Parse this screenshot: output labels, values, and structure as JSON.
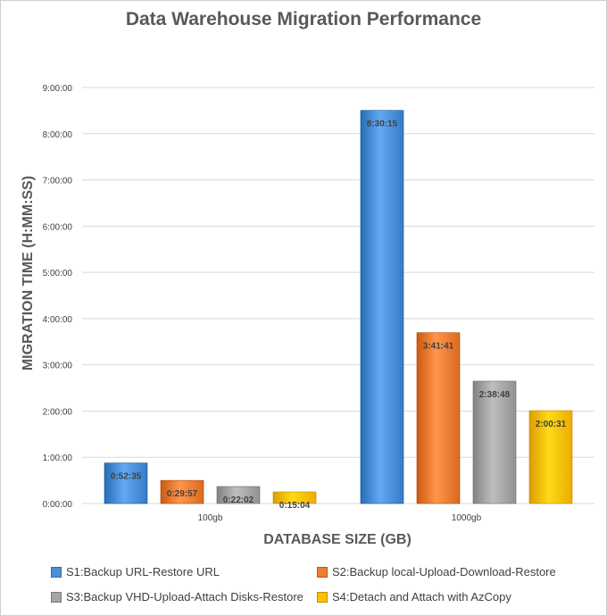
{
  "chart_data": {
    "type": "bar",
    "title": "Data Warehouse Migration Performance",
    "xlabel": "DATABASE SIZE (GB)",
    "ylabel": "MIGRATION TIME (H:MM:SS)",
    "categories": [
      "100gb",
      "1000gb"
    ],
    "y_ticks": [
      "0:00:00",
      "1:00:00",
      "2:00:00",
      "3:00:00",
      "4:00:00",
      "5:00:00",
      "6:00:00",
      "7:00:00",
      "8:00:00",
      "9:00:00"
    ],
    "ylim_seconds": [
      0,
      32400
    ],
    "grid": true,
    "legend_position": "bottom",
    "series": [
      {
        "name": "S1:Backup URL-Restore URL",
        "color": "#4a90d9",
        "values_seconds": [
          3155,
          30615
        ],
        "labels": [
          "0:52:35",
          "8:30:15"
        ]
      },
      {
        "name": "S2:Backup local-Upload-Download-Restore",
        "color": "#ed7d31",
        "values_seconds": [
          1797,
          13301
        ],
        "labels": [
          "0:29:57",
          "3:41:41"
        ]
      },
      {
        "name": "S3:Backup VHD-Upload-Attach Disks-Restore",
        "color": "#a5a5a5",
        "values_seconds": [
          1322,
          9528
        ],
        "labels": [
          "0:22:02",
          "2:38:48"
        ]
      },
      {
        "name": "S4:Detach and Attach with AzCopy",
        "color": "#ffc000",
        "values_seconds": [
          904,
          7231
        ],
        "labels": [
          "0:15:04",
          "2:00:31"
        ]
      }
    ]
  }
}
